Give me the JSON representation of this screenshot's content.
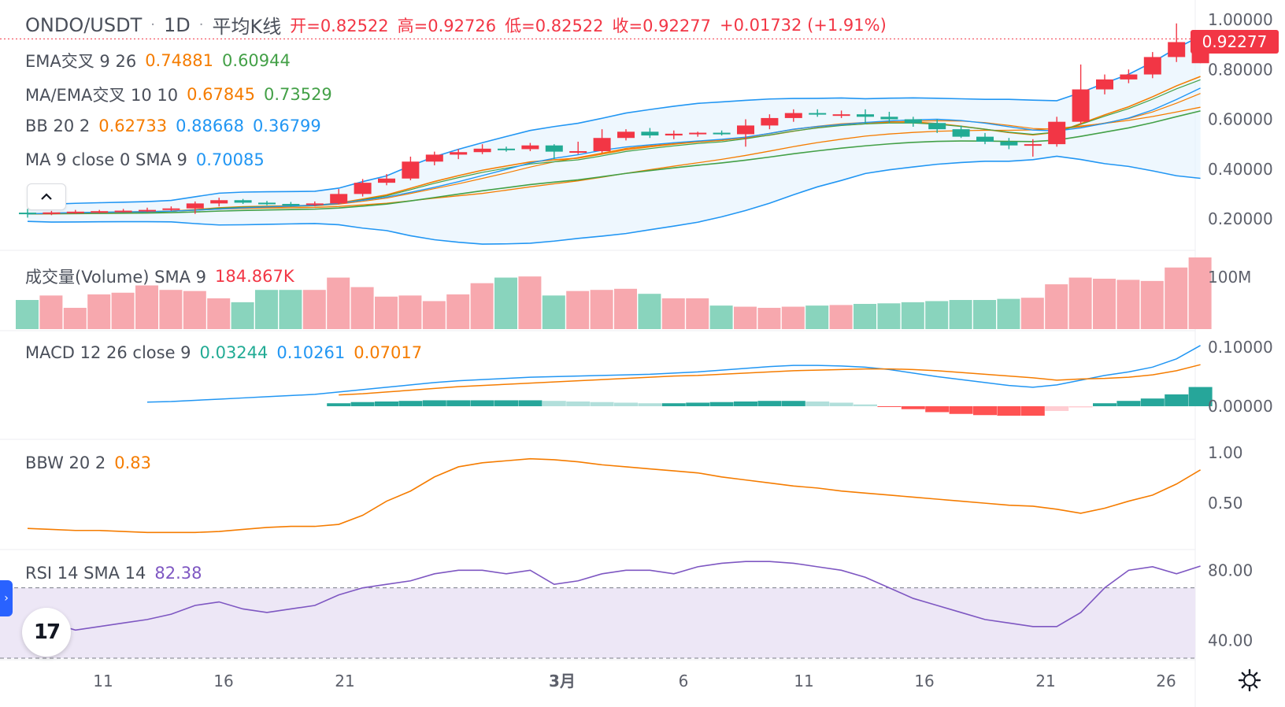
{
  "header": {
    "symbol": "ONDO/USDT",
    "sep": "·",
    "interval": "1D",
    "sep2": "·",
    "chart_type": "平均K线",
    "open": "开=0.82522",
    "high": "高=0.92726",
    "low": "低=0.82522",
    "close": "收=0.92277",
    "change": "+0.01732 (+1.91%)"
  },
  "indicators": {
    "ema": {
      "name": "EMA交叉 9 26",
      "v1": "0.74881",
      "v2": "0.60944"
    },
    "maema": {
      "name": "MA/EMA交叉 10 10",
      "v1": "0.67845",
      "v2": "0.73529"
    },
    "bb": {
      "name": "BB 20 2",
      "v1": "0.62733",
      "v2": "0.88668",
      "v3": "0.36799"
    },
    "ma": {
      "name": "MA 9 close 0 SMA 9",
      "v1": "0.70085"
    },
    "volume": {
      "name": "成交量(Volume) SMA 9",
      "v1": "184.867K"
    },
    "macd": {
      "name": "MACD 12 26 close 9",
      "v1": "0.03244",
      "v2": "0.10261",
      "v3": "0.07017"
    },
    "bbw": {
      "name": "BBW 20 2",
      "v1": "0.83"
    },
    "rsi": {
      "name": "RSI 14 SMA 14",
      "v1": "82.38"
    }
  },
  "price_tag": "0.92277",
  "collapse_icon": "chevron-up-icon",
  "logo_text": "17",
  "axes": {
    "price": [
      "1.00000",
      "0.80000",
      "0.60000",
      "0.40000",
      "0.20000"
    ],
    "volume": [
      "100M"
    ],
    "macd": [
      "0.10000",
      "0.00000"
    ],
    "bbw": [
      "1.00",
      "0.50"
    ],
    "rsi": [
      "80.00",
      "40.00"
    ],
    "time": [
      "11",
      "16",
      "21",
      "3月",
      "6",
      "11",
      "16",
      "21",
      "26"
    ]
  },
  "colors": {
    "up": "#f23645",
    "down": "#22ab94",
    "ema_fast": "#f57c00",
    "ema_slow": "#43a047",
    "bb_line": "#2196f3",
    "bb_fill": "#e3f2fd",
    "macd_line": "#2196f3",
    "signal_line": "#f57c00",
    "bbw_line": "#f57c00",
    "rsi_line": "#7e57c2",
    "rsi_band": "#ede7f6",
    "vol_up": "#f7a8ae",
    "vol_down": "#89d4bd"
  },
  "chart_data": {
    "type": "candlestick",
    "candles": [
      {
        "o": 0.225,
        "h": 0.24,
        "l": 0.205,
        "c": 0.22
      },
      {
        "o": 0.222,
        "h": 0.232,
        "l": 0.215,
        "c": 0.226
      },
      {
        "o": 0.226,
        "h": 0.236,
        "l": 0.22,
        "c": 0.229
      },
      {
        "o": 0.229,
        "h": 0.236,
        "l": 0.222,
        "c": 0.231
      },
      {
        "o": 0.231,
        "h": 0.24,
        "l": 0.226,
        "c": 0.233
      },
      {
        "o": 0.233,
        "h": 0.245,
        "l": 0.228,
        "c": 0.236
      },
      {
        "o": 0.236,
        "h": 0.25,
        "l": 0.232,
        "c": 0.242
      },
      {
        "o": 0.242,
        "h": 0.27,
        "l": 0.22,
        "c": 0.262
      },
      {
        "o": 0.262,
        "h": 0.285,
        "l": 0.25,
        "c": 0.275
      },
      {
        "o": 0.275,
        "h": 0.28,
        "l": 0.26,
        "c": 0.265
      },
      {
        "o": 0.265,
        "h": 0.272,
        "l": 0.255,
        "c": 0.26
      },
      {
        "o": 0.26,
        "h": 0.268,
        "l": 0.248,
        "c": 0.258
      },
      {
        "o": 0.258,
        "h": 0.27,
        "l": 0.25,
        "c": 0.262
      },
      {
        "o": 0.262,
        "h": 0.32,
        "l": 0.258,
        "c": 0.3
      },
      {
        "o": 0.3,
        "h": 0.36,
        "l": 0.29,
        "c": 0.345
      },
      {
        "o": 0.345,
        "h": 0.38,
        "l": 0.335,
        "c": 0.362
      },
      {
        "o": 0.362,
        "h": 0.45,
        "l": 0.355,
        "c": 0.43
      },
      {
        "o": 0.43,
        "h": 0.47,
        "l": 0.415,
        "c": 0.458
      },
      {
        "o": 0.458,
        "h": 0.48,
        "l": 0.44,
        "c": 0.468
      },
      {
        "o": 0.468,
        "h": 0.5,
        "l": 0.46,
        "c": 0.482
      },
      {
        "o": 0.482,
        "h": 0.49,
        "l": 0.47,
        "c": 0.48
      },
      {
        "o": 0.48,
        "h": 0.505,
        "l": 0.472,
        "c": 0.495
      },
      {
        "o": 0.495,
        "h": 0.5,
        "l": 0.44,
        "c": 0.47
      },
      {
        "o": 0.47,
        "h": 0.51,
        "l": 0.46,
        "c": 0.472
      },
      {
        "o": 0.472,
        "h": 0.56,
        "l": 0.465,
        "c": 0.525
      },
      {
        "o": 0.525,
        "h": 0.56,
        "l": 0.515,
        "c": 0.55
      },
      {
        "o": 0.55,
        "h": 0.565,
        "l": 0.525,
        "c": 0.535
      },
      {
        "o": 0.535,
        "h": 0.555,
        "l": 0.52,
        "c": 0.542
      },
      {
        "o": 0.542,
        "h": 0.55,
        "l": 0.53,
        "c": 0.546
      },
      {
        "o": 0.546,
        "h": 0.555,
        "l": 0.535,
        "c": 0.54
      },
      {
        "o": 0.54,
        "h": 0.6,
        "l": 0.49,
        "c": 0.575
      },
      {
        "o": 0.575,
        "h": 0.62,
        "l": 0.56,
        "c": 0.605
      },
      {
        "o": 0.605,
        "h": 0.64,
        "l": 0.59,
        "c": 0.625
      },
      {
        "o": 0.625,
        "h": 0.64,
        "l": 0.61,
        "c": 0.62
      },
      {
        "o": 0.62,
        "h": 0.635,
        "l": 0.605,
        "c": 0.62
      },
      {
        "o": 0.62,
        "h": 0.64,
        "l": 0.58,
        "c": 0.61
      },
      {
        "o": 0.61,
        "h": 0.63,
        "l": 0.585,
        "c": 0.6
      },
      {
        "o": 0.6,
        "h": 0.61,
        "l": 0.57,
        "c": 0.585
      },
      {
        "o": 0.585,
        "h": 0.6,
        "l": 0.545,
        "c": 0.56
      },
      {
        "o": 0.56,
        "h": 0.575,
        "l": 0.525,
        "c": 0.53
      },
      {
        "o": 0.53,
        "h": 0.545,
        "l": 0.5,
        "c": 0.51
      },
      {
        "o": 0.51,
        "h": 0.525,
        "l": 0.48,
        "c": 0.495
      },
      {
        "o": 0.495,
        "h": 0.52,
        "l": 0.45,
        "c": 0.5
      },
      {
        "o": 0.5,
        "h": 0.61,
        "l": 0.49,
        "c": 0.59
      },
      {
        "o": 0.59,
        "h": 0.82,
        "l": 0.58,
        "c": 0.72
      },
      {
        "o": 0.72,
        "h": 0.78,
        "l": 0.7,
        "c": 0.76
      },
      {
        "o": 0.76,
        "h": 0.8,
        "l": 0.745,
        "c": 0.78
      },
      {
        "o": 0.78,
        "h": 0.87,
        "l": 0.765,
        "c": 0.85
      },
      {
        "o": 0.85,
        "h": 0.985,
        "l": 0.83,
        "c": 0.91
      },
      {
        "o": 0.82522,
        "h": 0.92726,
        "l": 0.82522,
        "c": 0.92277
      }
    ],
    "volume_scale": "100M",
    "volume": [
      52,
      60,
      38,
      62,
      65,
      78,
      70,
      68,
      55,
      48,
      70,
      70,
      70,
      92,
      75,
      58,
      60,
      50,
      62,
      82,
      92,
      94,
      60,
      68,
      70,
      72,
      63,
      55,
      55,
      42,
      40,
      38,
      40,
      42,
      43,
      45,
      46,
      48,
      50,
      52,
      52,
      54,
      56,
      80,
      92,
      90,
      88,
      86,
      110,
      128
    ],
    "macd": [
      {
        "macd": 0.0,
        "signal": 0.0,
        "hist": 0.0
      },
      {
        "macd": 0.002,
        "signal": 0.001,
        "hist": 0.001
      },
      {
        "macd": 0.004,
        "signal": 0.002,
        "hist": 0.002
      },
      {
        "macd": 0.005,
        "signal": 0.003,
        "hist": 0.002
      },
      {
        "macd": 0.006,
        "signal": 0.004,
        "hist": 0.002
      },
      {
        "macd": 0.007,
        "signal": 0.005,
        "hist": 0.002
      },
      {
        "macd": 0.008,
        "signal": 0.006,
        "hist": 0.002
      },
      {
        "macd": 0.01,
        "signal": 0.007,
        "hist": 0.003
      },
      {
        "macd": 0.012,
        "signal": 0.009,
        "hist": 0.003
      },
      {
        "macd": 0.014,
        "signal": 0.011,
        "hist": 0.003
      },
      {
        "macd": 0.016,
        "signal": 0.013,
        "hist": 0.003
      },
      {
        "macd": 0.018,
        "signal": 0.015,
        "hist": 0.003
      },
      {
        "macd": 0.02,
        "signal": 0.017,
        "hist": 0.003
      },
      {
        "macd": 0.024,
        "signal": 0.019,
        "hist": 0.005
      },
      {
        "macd": 0.028,
        "signal": 0.021,
        "hist": 0.007
      },
      {
        "macd": 0.032,
        "signal": 0.024,
        "hist": 0.008
      },
      {
        "macd": 0.036,
        "signal": 0.027,
        "hist": 0.009
      },
      {
        "macd": 0.04,
        "signal": 0.03,
        "hist": 0.01
      },
      {
        "macd": 0.043,
        "signal": 0.033,
        "hist": 0.01
      },
      {
        "macd": 0.045,
        "signal": 0.035,
        "hist": 0.01
      },
      {
        "macd": 0.047,
        "signal": 0.037,
        "hist": 0.01
      },
      {
        "macd": 0.049,
        "signal": 0.039,
        "hist": 0.01
      },
      {
        "macd": 0.05,
        "signal": 0.041,
        "hist": 0.009
      },
      {
        "macd": 0.051,
        "signal": 0.043,
        "hist": 0.008
      },
      {
        "macd": 0.052,
        "signal": 0.045,
        "hist": 0.007
      },
      {
        "macd": 0.053,
        "signal": 0.047,
        "hist": 0.006
      },
      {
        "macd": 0.054,
        "signal": 0.049,
        "hist": 0.005
      },
      {
        "macd": 0.056,
        "signal": 0.051,
        "hist": 0.005
      },
      {
        "macd": 0.058,
        "signal": 0.052,
        "hist": 0.006
      },
      {
        "macd": 0.061,
        "signal": 0.054,
        "hist": 0.007
      },
      {
        "macd": 0.064,
        "signal": 0.056,
        "hist": 0.008
      },
      {
        "macd": 0.067,
        "signal": 0.058,
        "hist": 0.009
      },
      {
        "macd": 0.069,
        "signal": 0.06,
        "hist": 0.009
      },
      {
        "macd": 0.069,
        "signal": 0.061,
        "hist": 0.008
      },
      {
        "macd": 0.068,
        "signal": 0.062,
        "hist": 0.006
      },
      {
        "macd": 0.066,
        "signal": 0.063,
        "hist": 0.003
      },
      {
        "macd": 0.062,
        "signal": 0.063,
        "hist": -0.001
      },
      {
        "macd": 0.056,
        "signal": 0.062,
        "hist": -0.005
      },
      {
        "macd": 0.05,
        "signal": 0.06,
        "hist": -0.01
      },
      {
        "macd": 0.045,
        "signal": 0.057,
        "hist": -0.013
      },
      {
        "macd": 0.04,
        "signal": 0.054,
        "hist": -0.015
      },
      {
        "macd": 0.035,
        "signal": 0.051,
        "hist": -0.016
      },
      {
        "macd": 0.032,
        "signal": 0.048,
        "hist": -0.016
      },
      {
        "macd": 0.036,
        "signal": 0.044,
        "hist": -0.008
      },
      {
        "macd": 0.044,
        "signal": 0.046,
        "hist": -0.002
      },
      {
        "macd": 0.052,
        "signal": 0.047,
        "hist": 0.005
      },
      {
        "macd": 0.058,
        "signal": 0.049,
        "hist": 0.009
      },
      {
        "macd": 0.066,
        "signal": 0.053,
        "hist": 0.013
      },
      {
        "macd": 0.08,
        "signal": 0.06,
        "hist": 0.02
      },
      {
        "macd": 0.10261,
        "signal": 0.07017,
        "hist": 0.03244
      }
    ],
    "bbw": [
      0.25,
      0.24,
      0.23,
      0.23,
      0.22,
      0.21,
      0.21,
      0.21,
      0.22,
      0.24,
      0.26,
      0.27,
      0.27,
      0.29,
      0.38,
      0.52,
      0.62,
      0.76,
      0.86,
      0.9,
      0.92,
      0.94,
      0.93,
      0.91,
      0.88,
      0.86,
      0.84,
      0.82,
      0.8,
      0.76,
      0.73,
      0.7,
      0.67,
      0.65,
      0.62,
      0.6,
      0.58,
      0.56,
      0.54,
      0.52,
      0.5,
      0.48,
      0.47,
      0.44,
      0.4,
      0.45,
      0.52,
      0.58,
      0.69,
      0.83
    ],
    "rsi": [
      48,
      50,
      46,
      48,
      50,
      52,
      55,
      60,
      62,
      58,
      56,
      58,
      60,
      66,
      70,
      72,
      74,
      78,
      80,
      80,
      78,
      80,
      72,
      74,
      78,
      80,
      80,
      78,
      82,
      84,
      85,
      85,
      84,
      82,
      80,
      76,
      70,
      64,
      60,
      56,
      52,
      50,
      48,
      48,
      56,
      70,
      80,
      82,
      78,
      82.38
    ]
  }
}
